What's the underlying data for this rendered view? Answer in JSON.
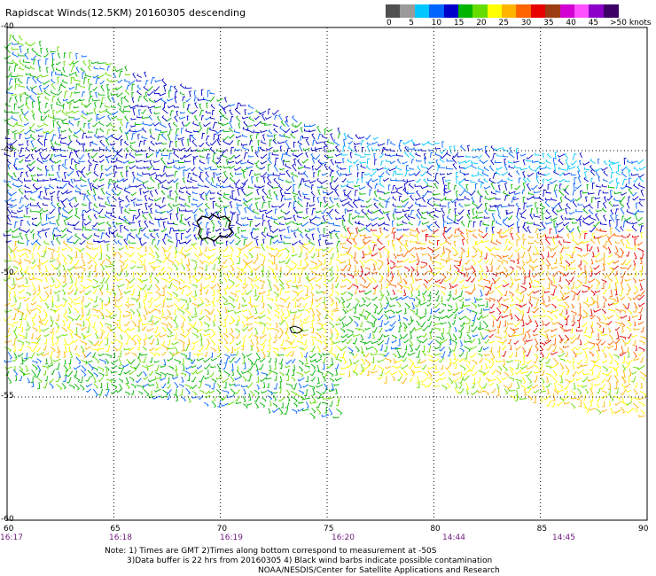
{
  "title": "Rapidscat Winds(12.5KM) 20160305 descending",
  "legend": {
    "labels": [
      "0",
      "5",
      "10",
      "15",
      "20",
      "25",
      "30",
      "35",
      "40",
      "45"
    ],
    "max_label": ">50 knots",
    "colors": [
      "#505050",
      "#9a9a9a",
      "#00c8ff",
      "#0064ff",
      "#0000c8",
      "#00b400",
      "#64dc00",
      "#ffff00",
      "#ffb400",
      "#ff6400",
      "#e60000",
      "#9b3c14",
      "#d200d2",
      "#ff50ff",
      "#8c00c8",
      "#3c0064"
    ]
  },
  "axes": {
    "lat_labels": [
      "-40",
      "-45",
      "-50",
      "-55",
      "-60"
    ],
    "lon_labels": [
      "60",
      "65",
      "70",
      "75",
      "80",
      "85",
      "90"
    ],
    "time_labels": [
      "16:17",
      "16:18",
      "16:19",
      "16:20",
      "14:44",
      "14:45"
    ]
  },
  "notes": {
    "line1": "Note: 1) Times are GMT 2)Times along bottom correspond to measurement at -50S",
    "line2": "3)Data buffer is 22 hrs from 20160305 4) Black wind barbs indicate possible contamination",
    "line3": "NOAA/NESDIS/Center for Satellite Applications and Research"
  }
}
